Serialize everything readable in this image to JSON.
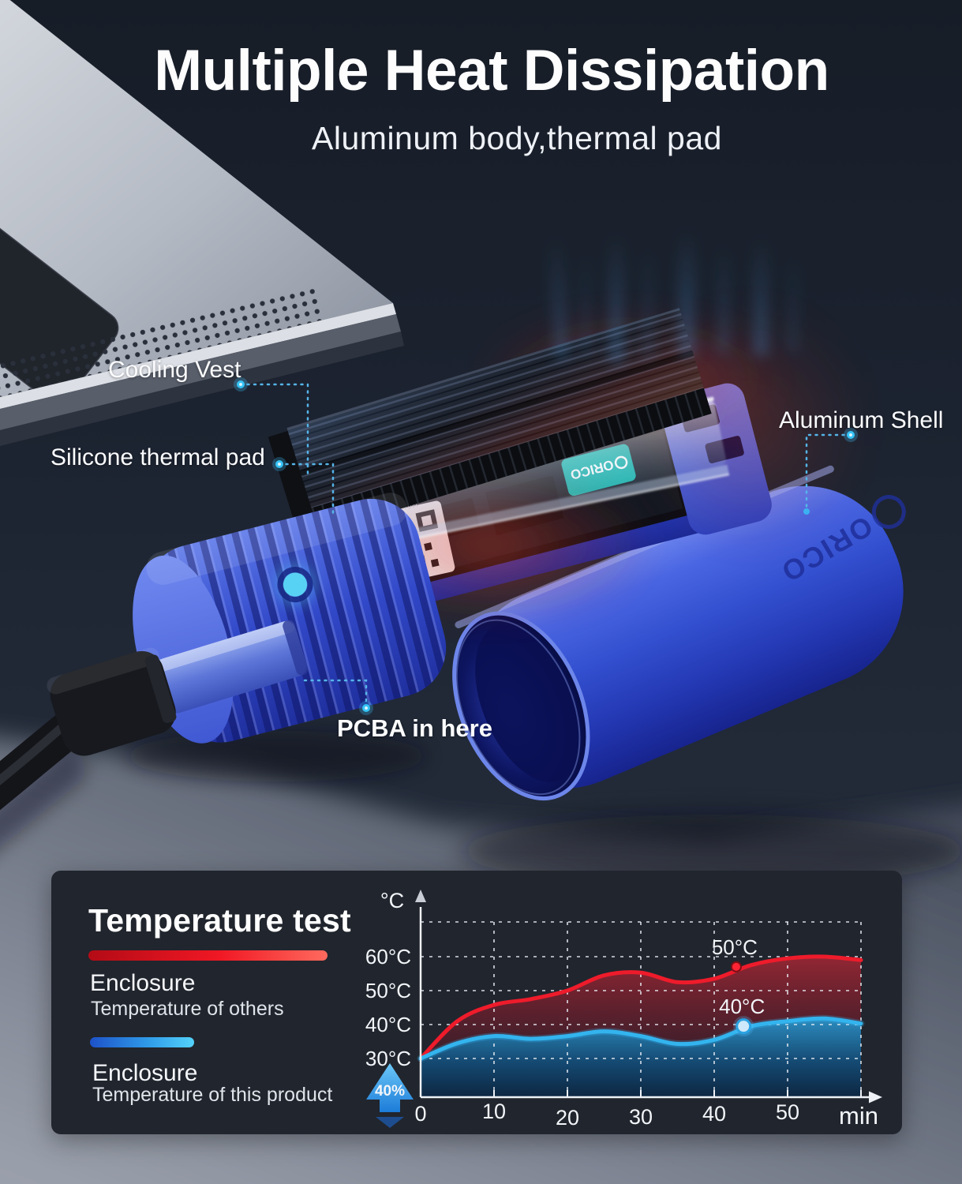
{
  "page": {
    "title": "Multiple Heat Dissipation",
    "subtitle": "Aluminum body,thermal pad"
  },
  "callouts": {
    "cooling_vest": "Cooling Vest",
    "silicone_pad": "Silicone thermal pad",
    "aluminum_shell": "Aluminum Shell",
    "pcba": "PCBA in here",
    "leader_color": "#55b4e8"
  },
  "product": {
    "brand": "ORICO",
    "qr_sticker_text": "WWW.ORICO",
    "shell_color": "#3552d4",
    "led_color": "#5fd6f6"
  },
  "panel": {
    "heading": "Temperature test",
    "legend": [
      {
        "line1": "Enclosure",
        "line2": "Temperature of others",
        "bar_from": "#b30b16",
        "bar_mid": "#f01824",
        "bar_to": "#ff6a5e"
      },
      {
        "line1": "Enclosure",
        "line2": "Temperature of this product",
        "bar_from": "#1d52c8",
        "bar_mid": "#2f9ae8",
        "bar_to": "#54d2fa"
      }
    ]
  },
  "chart_data": {
    "type": "area",
    "title": "Temperature test",
    "x_axis_label": "min",
    "y_axis_label": "°C",
    "x_range": [
      0,
      60
    ],
    "x_ticks": [
      0,
      10,
      20,
      30,
      40,
      50
    ],
    "y_tick_values": [
      30,
      40,
      50,
      60
    ],
    "y_tick_labels": [
      "30°C",
      "40°C",
      "50°C",
      "60°C"
    ],
    "grid": "dashed",
    "legend_position": "left",
    "x": [
      0,
      5,
      10,
      15,
      20,
      25,
      30,
      35,
      40,
      45,
      50,
      55,
      60
    ],
    "series": [
      {
        "name": "Enclosure Temperature of others",
        "color": "#ee1b2b",
        "values": [
          30,
          41,
          45.8,
          47.5,
          50,
          54.5,
          55.3,
          52.5,
          53.5,
          57.5,
          59.5,
          60,
          59
        ]
      },
      {
        "name": "Enclosure Temperature of this product",
        "color": "#33b4ee",
        "values": [
          30,
          34.5,
          36.6,
          35.8,
          36.6,
          38,
          36.6,
          34.3,
          35.5,
          39.5,
          41,
          41.8,
          40.3
        ]
      }
    ],
    "annotations": [
      {
        "label": "50°C",
        "x": 43,
        "y": 57,
        "series": 0
      },
      {
        "label": "40°C",
        "x": 44,
        "y": 39.5,
        "series": 1
      }
    ],
    "badge": "40%"
  }
}
